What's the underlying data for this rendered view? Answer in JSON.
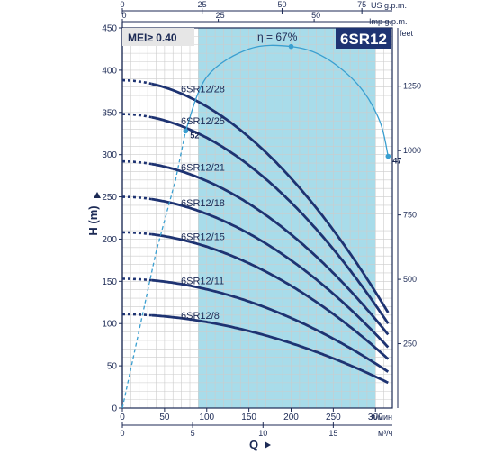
{
  "chart_data": {
    "type": "line",
    "model": "6SR12",
    "mei": "MEI≥ 0.40",
    "efficiency_label": "η = 67%",
    "x_title": "Q",
    "y_title": "H (m)",
    "x_unit_main": "л/мин",
    "x_unit_bottom": "м³/ч",
    "x_unit_top1": "US g.p.m.",
    "x_unit_top2": "Imp g.p.m.",
    "y_unit_right": "feet",
    "xlim": [
      0,
      320
    ],
    "ylim": [
      0,
      450
    ],
    "x_ticks": [
      {
        "v": 0,
        "t": "0"
      },
      {
        "v": 50,
        "t": "50"
      },
      {
        "v": 100,
        "t": "100"
      },
      {
        "v": 150,
        "t": "150"
      },
      {
        "v": 200,
        "t": "200"
      },
      {
        "v": 250,
        "t": "250"
      },
      {
        "v": 300,
        "t": "300"
      }
    ],
    "y_ticks": [
      {
        "v": 0,
        "t": "0"
      },
      {
        "v": 50,
        "t": "50"
      },
      {
        "v": 100,
        "t": "100"
      },
      {
        "v": 150,
        "t": "150"
      },
      {
        "v": 200,
        "t": "200"
      },
      {
        "v": 250,
        "t": "250"
      },
      {
        "v": 300,
        "t": "300"
      },
      {
        "v": 350,
        "t": "350"
      },
      {
        "v": 400,
        "t": "400"
      },
      {
        "v": 450,
        "t": "450"
      }
    ],
    "bottom_ticks": [
      {
        "v": 0,
        "t": "0"
      },
      {
        "v": 83.3,
        "t": "5"
      },
      {
        "v": 166.7,
        "t": "10"
      },
      {
        "v": 250,
        "t": "15"
      }
    ],
    "top_us_ticks": [
      {
        "v": 0,
        "t": "0"
      },
      {
        "v": 94.6,
        "t": "25"
      },
      {
        "v": 189.3,
        "t": "50"
      },
      {
        "v": 283.9,
        "t": "75"
      }
    ],
    "top_imp_ticks": [
      {
        "v": 0,
        "t": "0"
      },
      {
        "v": 113.7,
        "t": "25"
      },
      {
        "v": 227.3,
        "t": "50"
      }
    ],
    "feet_ticks": [
      {
        "v": 76.2,
        "t": "250"
      },
      {
        "v": 152.4,
        "t": "500"
      },
      {
        "v": 228.6,
        "t": "750"
      },
      {
        "v": 304.8,
        "t": "1000"
      },
      {
        "v": 381,
        "t": "1250"
      }
    ],
    "operating_range": [
      90,
      300
    ],
    "series": [
      {
        "name": "6SR12/28",
        "h0": 388,
        "h_max": 113,
        "label_x": 80,
        "label_y": 378
      },
      {
        "name": "6SR12/25",
        "h0": 348,
        "h_max": 100,
        "label_x": 80,
        "label_y": 340
      },
      {
        "name": "6SR12/21",
        "h0": 292,
        "h_max": 87,
        "label_x": 80,
        "label_y": 285
      },
      {
        "name": "6SR12/18",
        "h0": 250,
        "h_max": 72,
        "label_x": 80,
        "label_y": 243
      },
      {
        "name": "6SR12/15",
        "h0": 208,
        "h_max": 58,
        "label_x": 80,
        "label_y": 203
      },
      {
        "name": "6SR12/11",
        "h0": 153,
        "h_max": 43,
        "label_x": 80,
        "label_y": 151
      },
      {
        "name": "6SR12/8",
        "h0": 111,
        "h_max": 30,
        "label_x": 80,
        "label_y": 110
      }
    ],
    "efficiency_points": [
      {
        "x": 0,
        "y": 0
      },
      {
        "x": 40,
        "y": 185
      },
      {
        "x": 63,
        "y": 270
      },
      {
        "x": 75,
        "y": 328
      },
      {
        "x": 100,
        "y": 392
      },
      {
        "x": 150,
        "y": 425
      },
      {
        "x": 200,
        "y": 428
      },
      {
        "x": 240,
        "y": 415
      },
      {
        "x": 280,
        "y": 382
      },
      {
        "x": 305,
        "y": 340
      },
      {
        "x": 315,
        "y": 298
      }
    ],
    "efficiency_markers": [
      {
        "x": 75,
        "y": 328,
        "label": "52"
      },
      {
        "x": 200,
        "y": 428,
        "label": ""
      },
      {
        "x": 315,
        "y": 298,
        "label": "47"
      }
    ],
    "colors": {
      "curve": "#1e3372",
      "efficiency": "#3a9fd0",
      "band": "#a8dcea",
      "grid": "#cccccc",
      "axis": "#1c2a55",
      "model_bg": "#1e3372"
    }
  }
}
